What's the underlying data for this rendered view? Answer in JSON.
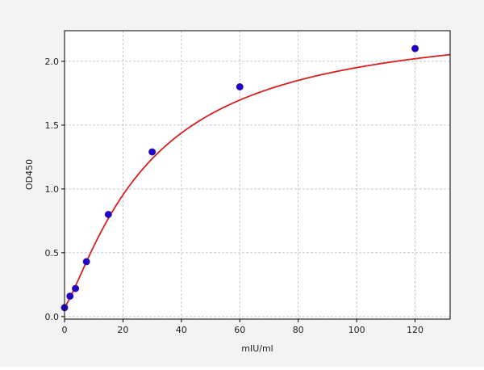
{
  "chart_data": {
    "type": "scatter",
    "title": "",
    "xlabel": "mIU/ml",
    "ylabel": "OD450",
    "xlim": [
      0,
      132
    ],
    "ylim": [
      -0.02,
      2.24
    ],
    "xticks": [
      0,
      20,
      40,
      60,
      80,
      100,
      120
    ],
    "yticks": [
      0.0,
      0.5,
      1.0,
      1.5,
      2.0
    ],
    "ytick_labels": [
      "0.0",
      "0.5",
      "1.0",
      "1.5",
      "2.0"
    ],
    "grid": true,
    "points": {
      "x": [
        0,
        1.875,
        3.75,
        7.5,
        15,
        30,
        60,
        120
      ],
      "y": [
        0.07,
        0.16,
        0.22,
        0.43,
        0.8,
        1.29,
        1.8,
        2.1
      ],
      "color": "#1f00c8"
    },
    "fit_curve": {
      "model": "4PL",
      "bottom": 0.075,
      "top": 2.35,
      "ec50": 29,
      "hill": 1.25,
      "color": "#d62020"
    }
  }
}
